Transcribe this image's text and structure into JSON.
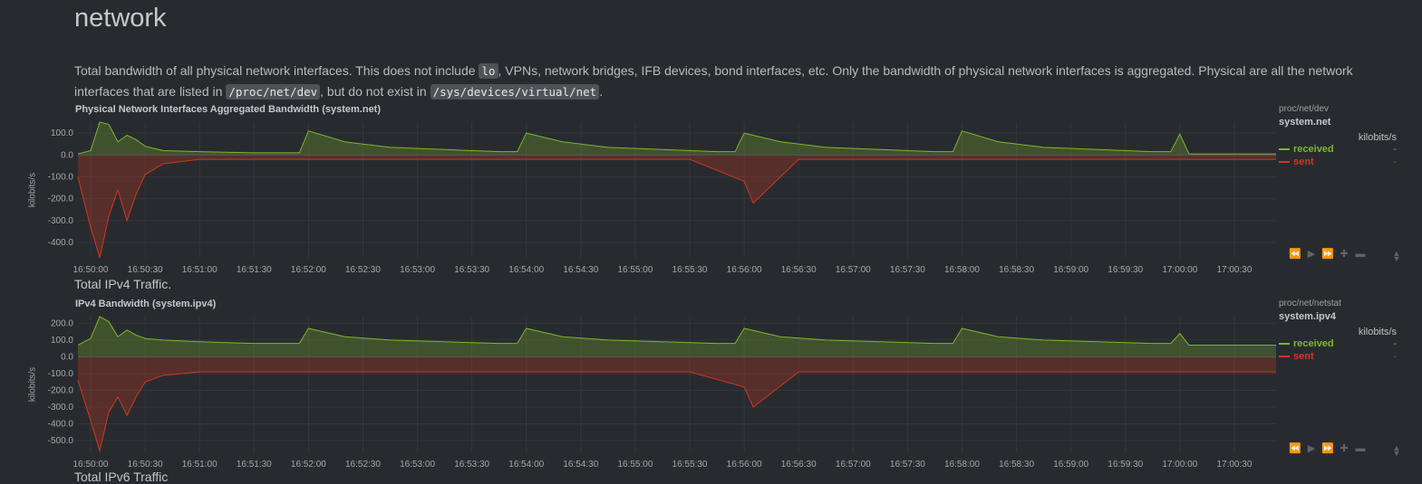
{
  "section": {
    "title": "network",
    "description": {
      "p1": "Total bandwidth of all physical network interfaces. This does not include ",
      "code1": "lo",
      "p2": ", VPNs, network bridges, IFB devices, bond interfaces, etc. Only the bandwidth of physical network interfaces is aggregated. Physical are all the network interfaces that are listed in ",
      "code2": "/proc/net/dev",
      "p3": ", but do not exist in ",
      "code3": "/sys/devices/virtual/net",
      "p4": "."
    }
  },
  "colors": {
    "received": "#7cb827",
    "sent": "#d6361c"
  },
  "toolbar_icons": [
    "backward-icon",
    "play-icon",
    "forward-icon",
    "zoom-in-icon",
    "zoom-out-icon"
  ],
  "charts": [
    {
      "title": "Physical Network Interfaces Aggregated Bandwidth (system.net)",
      "source": "proc/net/dev",
      "context": "system.net",
      "units": "kilobits/s",
      "ylabel": "kilobits/s",
      "legend": [
        {
          "name": "received",
          "value": "-"
        },
        {
          "name": "sent",
          "value": "-"
        }
      ]
    },
    {
      "description": "Total IPv4 Traffic.",
      "title": "IPv4 Bandwidth (system.ipv4)",
      "source": "proc/net/netstat",
      "context": "system.ipv4",
      "units": "kilobits/s",
      "ylabel": "kilobits/s",
      "legend": [
        {
          "name": "received",
          "value": "-"
        },
        {
          "name": "sent",
          "value": "-"
        }
      ]
    }
  ],
  "next_section_title": "Total IPv6 Traffic",
  "chart_data": [
    {
      "type": "area",
      "title": "Physical Network Interfaces Aggregated Bandwidth (system.net)",
      "ylabel": "kilobits/s",
      "ylim": [
        -470,
        150
      ],
      "yticks": [
        "100.0",
        "0.0",
        "-100.0",
        "-200.0",
        "-300.0",
        "-400.0"
      ],
      "ytick_values": [
        100,
        0,
        -100,
        -200,
        -300,
        -400
      ],
      "xticks": [
        "16:50:00",
        "16:50:30",
        "16:51:00",
        "16:51:30",
        "16:52:00",
        "16:52:30",
        "16:53:00",
        "16:53:30",
        "16:54:00",
        "16:54:30",
        "16:55:00",
        "16:55:30",
        "16:56:00",
        "16:56:30",
        "16:57:00",
        "16:57:30",
        "16:58:00",
        "16:58:30",
        "16:59:00",
        "16:59:30",
        "17:00:00",
        "17:00:30"
      ],
      "x_range": [
        "16:49:53",
        "17:00:53"
      ],
      "grid": true,
      "series": [
        {
          "name": "received",
          "x": [
            "16:49:53",
            "16:50:00",
            "16:50:05",
            "16:50:10",
            "16:50:15",
            "16:50:20",
            "16:50:25",
            "16:50:30",
            "16:50:40",
            "16:51:00",
            "16:51:30",
            "16:51:55",
            "16:52:00",
            "16:52:20",
            "16:52:45",
            "16:53:15",
            "16:53:45",
            "16:53:55",
            "16:54:00",
            "16:54:20",
            "16:54:45",
            "16:55:15",
            "16:55:45",
            "16:55:55",
            "16:56:00",
            "16:56:20",
            "16:56:45",
            "16:57:15",
            "16:57:45",
            "16:57:55",
            "16:58:00",
            "16:58:20",
            "16:58:45",
            "16:59:15",
            "16:59:45",
            "16:59:55",
            "17:00:00",
            "17:00:05",
            "17:00:53"
          ],
          "values": [
            5,
            20,
            150,
            140,
            60,
            90,
            70,
            40,
            20,
            15,
            10,
            10,
            110,
            60,
            35,
            25,
            15,
            15,
            100,
            60,
            35,
            25,
            15,
            15,
            100,
            60,
            35,
            25,
            15,
            15,
            110,
            60,
            35,
            25,
            15,
            15,
            95,
            5,
            5
          ]
        },
        {
          "name": "sent",
          "x": [
            "16:49:53",
            "16:50:00",
            "16:50:05",
            "16:50:10",
            "16:50:15",
            "16:50:20",
            "16:50:25",
            "16:50:30",
            "16:50:40",
            "16:51:00",
            "16:51:30",
            "16:52:00",
            "16:52:30",
            "16:53:00",
            "16:53:30",
            "16:54:00",
            "16:54:30",
            "16:55:00",
            "16:55:30",
            "16:56:00",
            "16:56:05",
            "16:56:30",
            "16:57:00",
            "16:57:30",
            "16:58:00",
            "16:58:30",
            "16:59:00",
            "16:59:30",
            "17:00:00",
            "17:00:05",
            "17:00:53"
          ],
          "values": [
            -100,
            -330,
            -470,
            -280,
            -160,
            -300,
            -180,
            -90,
            -40,
            -20,
            -20,
            -20,
            -20,
            -20,
            -20,
            -20,
            -20,
            -20,
            -20,
            -120,
            -220,
            -20,
            -20,
            -20,
            -20,
            -20,
            -20,
            -20,
            -20,
            -20,
            -20
          ]
        }
      ]
    },
    {
      "type": "area",
      "title": "IPv4 Bandwidth (system.ipv4)",
      "ylabel": "kilobits/s",
      "ylim": [
        -570,
        240
      ],
      "yticks": [
        "200.0",
        "100.0",
        "0.0",
        "-100.0",
        "-200.0",
        "-300.0",
        "-400.0",
        "-500.0"
      ],
      "ytick_values": [
        200,
        100,
        0,
        -100,
        -200,
        -300,
        -400,
        -500
      ],
      "xticks": [
        "16:50:00",
        "16:50:30",
        "16:51:00",
        "16:51:30",
        "16:52:00",
        "16:52:30",
        "16:53:00",
        "16:53:30",
        "16:54:00",
        "16:54:30",
        "16:55:00",
        "16:55:30",
        "16:56:00",
        "16:56:30",
        "16:57:00",
        "16:57:30",
        "16:58:00",
        "16:58:30",
        "16:59:00",
        "16:59:30",
        "17:00:00",
        "17:00:30"
      ],
      "x_range": [
        "16:49:53",
        "17:00:53"
      ],
      "grid": true,
      "series": [
        {
          "name": "received",
          "x": [
            "16:49:53",
            "16:50:00",
            "16:50:05",
            "16:50:10",
            "16:50:15",
            "16:50:20",
            "16:50:25",
            "16:50:30",
            "16:50:40",
            "16:51:00",
            "16:51:30",
            "16:51:55",
            "16:52:00",
            "16:52:20",
            "16:52:45",
            "16:53:15",
            "16:53:45",
            "16:53:55",
            "16:54:00",
            "16:54:20",
            "16:54:45",
            "16:55:15",
            "16:55:45",
            "16:55:55",
            "16:56:00",
            "16:56:20",
            "16:56:45",
            "16:57:15",
            "16:57:45",
            "16:57:55",
            "16:58:00",
            "16:58:20",
            "16:58:45",
            "16:59:15",
            "16:59:45",
            "16:59:55",
            "17:00:00",
            "17:00:05",
            "17:00:53"
          ],
          "values": [
            70,
            110,
            240,
            210,
            120,
            160,
            130,
            110,
            100,
            90,
            80,
            80,
            170,
            120,
            100,
            90,
            80,
            80,
            170,
            120,
            100,
            90,
            80,
            80,
            170,
            120,
            100,
            90,
            80,
            80,
            170,
            120,
            100,
            90,
            80,
            80,
            140,
            70,
            70
          ]
        },
        {
          "name": "sent",
          "x": [
            "16:49:53",
            "16:50:00",
            "16:50:05",
            "16:50:10",
            "16:50:15",
            "16:50:20",
            "16:50:25",
            "16:50:30",
            "16:50:40",
            "16:51:00",
            "16:51:30",
            "16:52:00",
            "16:52:30",
            "16:53:00",
            "16:53:30",
            "16:54:00",
            "16:54:30",
            "16:55:00",
            "16:55:30",
            "16:56:00",
            "16:56:05",
            "16:56:30",
            "16:57:00",
            "16:57:30",
            "16:58:00",
            "16:58:30",
            "16:59:00",
            "16:59:30",
            "17:00:00",
            "17:00:05",
            "17:00:53"
          ],
          "values": [
            -140,
            -380,
            -560,
            -330,
            -240,
            -350,
            -240,
            -150,
            -110,
            -90,
            -90,
            -90,
            -90,
            -90,
            -90,
            -90,
            -90,
            -90,
            -90,
            -180,
            -300,
            -90,
            -90,
            -90,
            -90,
            -90,
            -90,
            -90,
            -90,
            -90,
            -90
          ]
        }
      ]
    }
  ]
}
